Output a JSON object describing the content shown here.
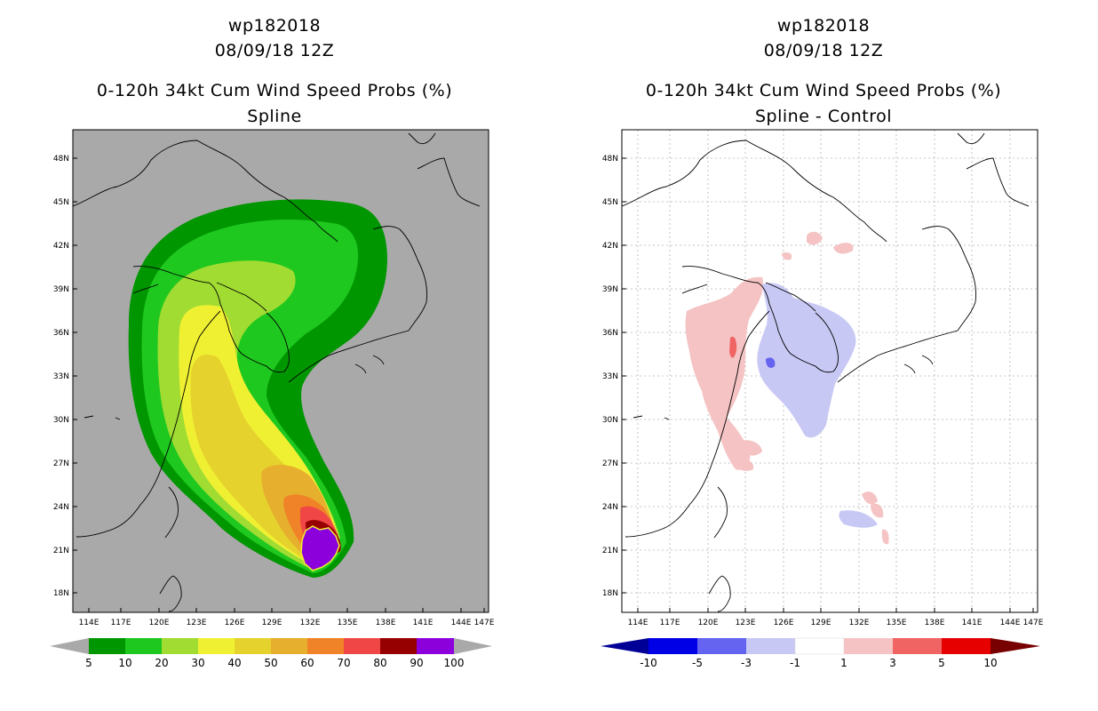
{
  "left_panel": {
    "title_lines": [
      "wp182018",
      "08/09/18 12Z",
      "0-120h 34kt Cum Wind Speed Probs (%)",
      "Spline"
    ],
    "lat_labels": [
      "48N",
      "45N",
      "42N",
      "39N",
      "36N",
      "33N",
      "30N",
      "27N",
      "24N",
      "21N",
      "18N"
    ],
    "lon_labels": [
      "114E",
      "117E",
      "120E",
      "123E",
      "126E",
      "129E",
      "132E",
      "135E",
      "138E",
      "141E",
      "144E",
      "147E"
    ],
    "colorbar": {
      "labels": [
        "5",
        "10",
        "20",
        "30",
        "40",
        "50",
        "60",
        "70",
        "80",
        "90",
        "100"
      ],
      "colors": [
        "#009600",
        "#1ec81e",
        "#a0dc32",
        "#f0f032",
        "#e6d22d",
        "#e6af2d",
        "#f08228",
        "#f04646",
        "#960000",
        "#8c00dc"
      ],
      "under_color": "#a9a9a9",
      "over_color": "#a9a9a9"
    },
    "background_color": "#a9a9a9"
  },
  "right_panel": {
    "title_lines": [
      "wp182018",
      "08/09/18 12Z",
      "0-120h 34kt Cum Wind Speed Probs (%)",
      "Spline - Control"
    ],
    "lat_labels": [
      "48N",
      "45N",
      "42N",
      "39N",
      "36N",
      "33N",
      "30N",
      "27N",
      "24N",
      "21N",
      "18N"
    ],
    "lon_labels": [
      "114E",
      "117E",
      "120E",
      "123E",
      "126E",
      "129E",
      "132E",
      "135E",
      "138E",
      "141E",
      "144E",
      "147E"
    ],
    "colorbar": {
      "labels": [
        "-10",
        "-5",
        "-3",
        "-1",
        "1",
        "3",
        "5",
        "10"
      ],
      "colors": [
        "#0000e6",
        "#6464f0",
        "#c8c8f5",
        "#ffffff",
        "#f5c3c3",
        "#f06464",
        "#e60000"
      ],
      "under_color": "#000096",
      "over_color": "#780000"
    },
    "background_color": "#ffffff"
  }
}
